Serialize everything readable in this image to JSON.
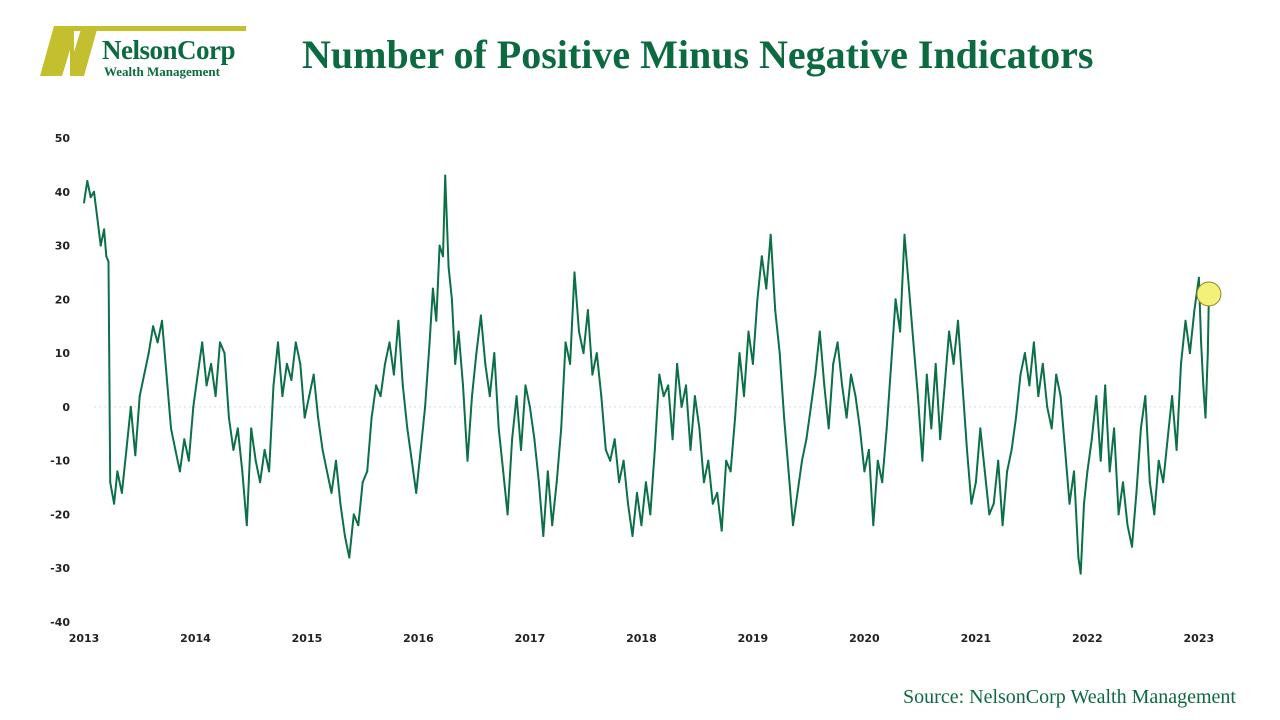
{
  "logo": {
    "name": "NelsonCorp",
    "subtitle": "Wealth Management"
  },
  "header": {
    "title": "Number of Positive Minus Negative Indicators"
  },
  "footer": {
    "source": "Source: NelsonCorp Wealth Management"
  },
  "colors": {
    "line": "#0b7048",
    "title": "#0b6a3f",
    "logo_accent": "#c3bf2e",
    "highlight": "#f5f07a"
  },
  "chart_data": {
    "type": "line",
    "title": "Number of Positive Minus Negative Indicators",
    "xlabel": "",
    "ylabel": "",
    "x_ticks": [
      "2013",
      "2014",
      "2015",
      "2016",
      "2017",
      "2018",
      "2019",
      "2020",
      "2021",
      "2022",
      "2023"
    ],
    "y_ticks": [
      "50",
      "40",
      "30",
      "20",
      "10",
      "0",
      "-10",
      "-20",
      "-30",
      "-40"
    ],
    "xlim": [
      2013.0,
      2023.1
    ],
    "ylim": [
      -40,
      50
    ],
    "grid": false,
    "zero_line": true,
    "highlight_point": {
      "x": 2023.09,
      "y": 21
    },
    "series": [
      {
        "name": "",
        "points": [
          [
            2013.0,
            38
          ],
          [
            2013.03,
            42
          ],
          [
            2013.06,
            39
          ],
          [
            2013.09,
            40
          ],
          [
            2013.12,
            35
          ],
          [
            2013.15,
            30
          ],
          [
            2013.18,
            33
          ],
          [
            2013.2,
            28
          ],
          [
            2013.22,
            27
          ],
          [
            2013.235,
            -14
          ],
          [
            2013.27,
            -18
          ],
          [
            2013.3,
            -12
          ],
          [
            2013.34,
            -16
          ],
          [
            2013.38,
            -8
          ],
          [
            2013.42,
            0
          ],
          [
            2013.46,
            -9
          ],
          [
            2013.5,
            2
          ],
          [
            2013.54,
            6
          ],
          [
            2013.58,
            10
          ],
          [
            2013.62,
            15
          ],
          [
            2013.66,
            12
          ],
          [
            2013.7,
            16
          ],
          [
            2013.74,
            6
          ],
          [
            2013.78,
            -4
          ],
          [
            2013.82,
            -8
          ],
          [
            2013.86,
            -12
          ],
          [
            2013.9,
            -6
          ],
          [
            2013.94,
            -10
          ],
          [
            2013.98,
            0
          ],
          [
            2014.02,
            6
          ],
          [
            2014.06,
            12
          ],
          [
            2014.1,
            4
          ],
          [
            2014.14,
            8
          ],
          [
            2014.18,
            2
          ],
          [
            2014.22,
            12
          ],
          [
            2014.26,
            10
          ],
          [
            2014.3,
            -2
          ],
          [
            2014.34,
            -8
          ],
          [
            2014.38,
            -4
          ],
          [
            2014.42,
            -12
          ],
          [
            2014.46,
            -22
          ],
          [
            2014.5,
            -4
          ],
          [
            2014.54,
            -10
          ],
          [
            2014.58,
            -14
          ],
          [
            2014.62,
            -8
          ],
          [
            2014.66,
            -12
          ],
          [
            2014.7,
            4
          ],
          [
            2014.74,
            12
          ],
          [
            2014.78,
            2
          ],
          [
            2014.82,
            8
          ],
          [
            2014.86,
            5
          ],
          [
            2014.9,
            12
          ],
          [
            2014.94,
            8
          ],
          [
            2014.98,
            -2
          ],
          [
            2015.02,
            2
          ],
          [
            2015.06,
            6
          ],
          [
            2015.1,
            -2
          ],
          [
            2015.14,
            -8
          ],
          [
            2015.18,
            -12
          ],
          [
            2015.22,
            -16
          ],
          [
            2015.26,
            -10
          ],
          [
            2015.3,
            -18
          ],
          [
            2015.34,
            -24
          ],
          [
            2015.38,
            -28
          ],
          [
            2015.42,
            -20
          ],
          [
            2015.46,
            -22
          ],
          [
            2015.5,
            -14
          ],
          [
            2015.54,
            -12
          ],
          [
            2015.58,
            -2
          ],
          [
            2015.62,
            4
          ],
          [
            2015.66,
            2
          ],
          [
            2015.7,
            8
          ],
          [
            2015.74,
            12
          ],
          [
            2015.78,
            6
          ],
          [
            2015.82,
            16
          ],
          [
            2015.86,
            4
          ],
          [
            2015.9,
            -4
          ],
          [
            2015.94,
            -10
          ],
          [
            2015.98,
            -16
          ],
          [
            2016.02,
            -8
          ],
          [
            2016.06,
            0
          ],
          [
            2016.1,
            12
          ],
          [
            2016.13,
            22
          ],
          [
            2016.16,
            16
          ],
          [
            2016.19,
            30
          ],
          [
            2016.22,
            28
          ],
          [
            2016.24,
            43
          ],
          [
            2016.27,
            26
          ],
          [
            2016.3,
            20
          ],
          [
            2016.33,
            8
          ],
          [
            2016.36,
            14
          ],
          [
            2016.4,
            4
          ],
          [
            2016.44,
            -10
          ],
          [
            2016.48,
            2
          ],
          [
            2016.52,
            10
          ],
          [
            2016.56,
            17
          ],
          [
            2016.6,
            8
          ],
          [
            2016.64,
            2
          ],
          [
            2016.68,
            10
          ],
          [
            2016.72,
            -4
          ],
          [
            2016.76,
            -12
          ],
          [
            2016.8,
            -20
          ],
          [
            2016.84,
            -6
          ],
          [
            2016.88,
            2
          ],
          [
            2016.92,
            -8
          ],
          [
            2016.96,
            4
          ],
          [
            2017.0,
            0
          ],
          [
            2017.04,
            -6
          ],
          [
            2017.08,
            -14
          ],
          [
            2017.12,
            -24
          ],
          [
            2017.16,
            -12
          ],
          [
            2017.2,
            -22
          ],
          [
            2017.24,
            -14
          ],
          [
            2017.28,
            -4
          ],
          [
            2017.32,
            12
          ],
          [
            2017.36,
            8
          ],
          [
            2017.4,
            25
          ],
          [
            2017.44,
            14
          ],
          [
            2017.48,
            10
          ],
          [
            2017.52,
            18
          ],
          [
            2017.56,
            6
          ],
          [
            2017.6,
            10
          ],
          [
            2017.64,
            2
          ],
          [
            2017.68,
            -8
          ],
          [
            2017.72,
            -10
          ],
          [
            2017.76,
            -6
          ],
          [
            2017.8,
            -14
          ],
          [
            2017.84,
            -10
          ],
          [
            2017.88,
            -18
          ],
          [
            2017.92,
            -24
          ],
          [
            2017.96,
            -16
          ],
          [
            2018.0,
            -22
          ],
          [
            2018.04,
            -14
          ],
          [
            2018.08,
            -20
          ],
          [
            2018.12,
            -8
          ],
          [
            2018.16,
            6
          ],
          [
            2018.2,
            2
          ],
          [
            2018.24,
            4
          ],
          [
            2018.28,
            -6
          ],
          [
            2018.32,
            8
          ],
          [
            2018.36,
            0
          ],
          [
            2018.4,
            4
          ],
          [
            2018.44,
            -8
          ],
          [
            2018.48,
            2
          ],
          [
            2018.52,
            -4
          ],
          [
            2018.56,
            -14
          ],
          [
            2018.6,
            -10
          ],
          [
            2018.64,
            -18
          ],
          [
            2018.68,
            -16
          ],
          [
            2018.72,
            -23
          ],
          [
            2018.76,
            -10
          ],
          [
            2018.8,
            -12
          ],
          [
            2018.84,
            -2
          ],
          [
            2018.88,
            10
          ],
          [
            2018.92,
            2
          ],
          [
            2018.96,
            14
          ],
          [
            2019.0,
            8
          ],
          [
            2019.04,
            20
          ],
          [
            2019.08,
            28
          ],
          [
            2019.12,
            22
          ],
          [
            2019.16,
            32
          ],
          [
            2019.2,
            18
          ],
          [
            2019.24,
            10
          ],
          [
            2019.28,
            -2
          ],
          [
            2019.32,
            -12
          ],
          [
            2019.36,
            -22
          ],
          [
            2019.4,
            -16
          ],
          [
            2019.44,
            -10
          ],
          [
            2019.48,
            -6
          ],
          [
            2019.52,
            0
          ],
          [
            2019.56,
            6
          ],
          [
            2019.6,
            14
          ],
          [
            2019.64,
            4
          ],
          [
            2019.68,
            -4
          ],
          [
            2019.72,
            8
          ],
          [
            2019.76,
            12
          ],
          [
            2019.8,
            4
          ],
          [
            2019.84,
            -2
          ],
          [
            2019.88,
            6
          ],
          [
            2019.92,
            2
          ],
          [
            2019.96,
            -4
          ],
          [
            2020.0,
            -12
          ],
          [
            2020.04,
            -8
          ],
          [
            2020.08,
            -22
          ],
          [
            2020.12,
            -10
          ],
          [
            2020.16,
            -14
          ],
          [
            2020.2,
            -4
          ],
          [
            2020.24,
            8
          ],
          [
            2020.28,
            20
          ],
          [
            2020.32,
            14
          ],
          [
            2020.36,
            32
          ],
          [
            2020.4,
            22
          ],
          [
            2020.44,
            12
          ],
          [
            2020.48,
            2
          ],
          [
            2020.52,
            -10
          ],
          [
            2020.56,
            6
          ],
          [
            2020.6,
            -4
          ],
          [
            2020.64,
            8
          ],
          [
            2020.68,
            -6
          ],
          [
            2020.72,
            4
          ],
          [
            2020.76,
            14
          ],
          [
            2020.8,
            8
          ],
          [
            2020.84,
            16
          ],
          [
            2020.88,
            4
          ],
          [
            2020.92,
            -8
          ],
          [
            2020.96,
            -18
          ],
          [
            2021.0,
            -14
          ],
          [
            2021.04,
            -4
          ],
          [
            2021.08,
            -12
          ],
          [
            2021.12,
            -20
          ],
          [
            2021.16,
            -18
          ],
          [
            2021.2,
            -10
          ],
          [
            2021.24,
            -22
          ],
          [
            2021.28,
            -12
          ],
          [
            2021.32,
            -8
          ],
          [
            2021.36,
            -2
          ],
          [
            2021.4,
            6
          ],
          [
            2021.44,
            10
          ],
          [
            2021.48,
            4
          ],
          [
            2021.52,
            12
          ],
          [
            2021.56,
            2
          ],
          [
            2021.6,
            8
          ],
          [
            2021.64,
            0
          ],
          [
            2021.68,
            -4
          ],
          [
            2021.72,
            6
          ],
          [
            2021.76,
            2
          ],
          [
            2021.8,
            -8
          ],
          [
            2021.84,
            -18
          ],
          [
            2021.88,
            -12
          ],
          [
            2021.92,
            -28
          ],
          [
            2021.94,
            -31
          ],
          [
            2021.97,
            -18
          ],
          [
            2022.0,
            -12
          ],
          [
            2022.04,
            -6
          ],
          [
            2022.08,
            2
          ],
          [
            2022.12,
            -10
          ],
          [
            2022.16,
            4
          ],
          [
            2022.2,
            -12
          ],
          [
            2022.24,
            -4
          ],
          [
            2022.28,
            -20
          ],
          [
            2022.32,
            -14
          ],
          [
            2022.36,
            -22
          ],
          [
            2022.4,
            -26
          ],
          [
            2022.44,
            -16
          ],
          [
            2022.48,
            -4
          ],
          [
            2022.52,
            2
          ],
          [
            2022.56,
            -14
          ],
          [
            2022.6,
            -20
          ],
          [
            2022.64,
            -10
          ],
          [
            2022.68,
            -14
          ],
          [
            2022.72,
            -6
          ],
          [
            2022.76,
            2
          ],
          [
            2022.8,
            -8
          ],
          [
            2022.84,
            8
          ],
          [
            2022.88,
            16
          ],
          [
            2022.92,
            10
          ],
          [
            2022.96,
            18
          ],
          [
            2023.0,
            24
          ],
          [
            2023.02,
            12
          ],
          [
            2023.04,
            4
          ],
          [
            2023.06,
            -2
          ],
          [
            2023.08,
            10
          ],
          [
            2023.09,
            21
          ]
        ]
      }
    ]
  }
}
